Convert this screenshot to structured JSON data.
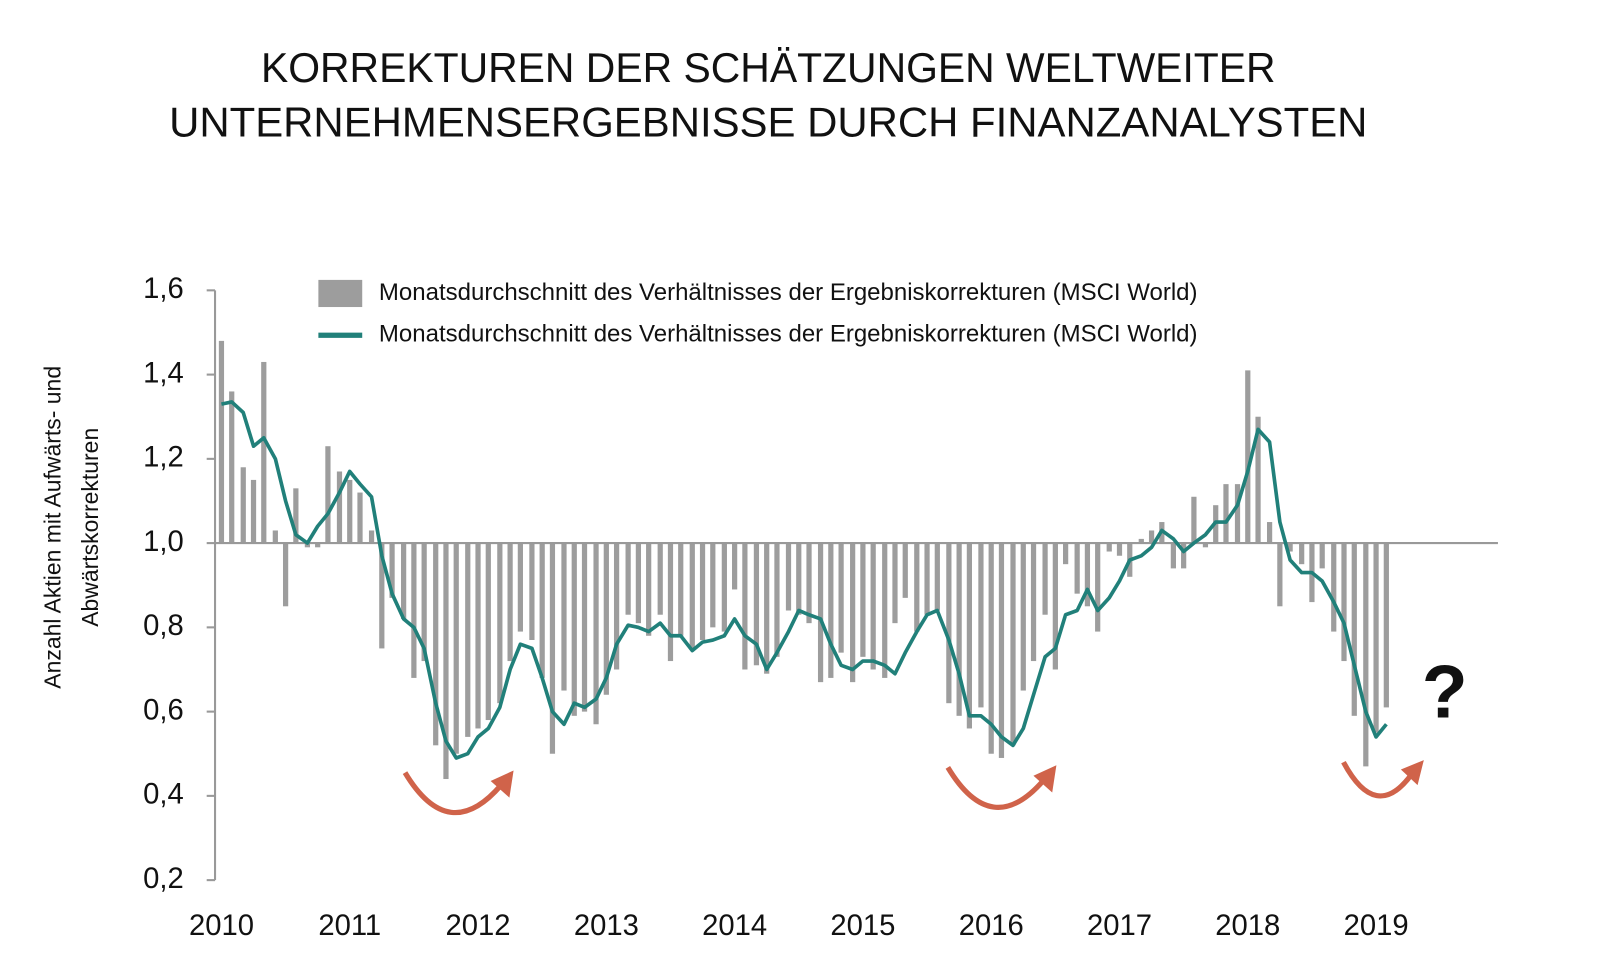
{
  "chart_data": {
    "type": "bar-line",
    "title": [
      "KORREKTUREN DER SCHÄTZUNGEN WELTWEITER",
      "UNTERNEHMENSERGEBNISSE DURCH FINANZANALYSTEN"
    ],
    "y_label": [
      "Anzahl Aktien mit Aufwärts- und",
      "Abwärtskorrekturen"
    ],
    "annotation": "?",
    "xlim": [
      2009.95,
      2019.95
    ],
    "xticks": [
      2010,
      2011,
      2012,
      2013,
      2014,
      2015,
      2016,
      2017,
      2018,
      2019
    ],
    "ylim": [
      0.2,
      1.6
    ],
    "yticks": [
      {
        "value": 0.2,
        "label": "0,2"
      },
      {
        "value": 0.4,
        "label": "0,4"
      },
      {
        "value": 0.6,
        "label": "0,6"
      },
      {
        "value": 0.8,
        "label": "0,8"
      },
      {
        "value": 1.0,
        "label": "1,0"
      },
      {
        "value": 1.2,
        "label": "1,2"
      },
      {
        "value": 1.4,
        "label": "1,4"
      },
      {
        "value": 1.6,
        "label": "1,6"
      }
    ],
    "baseline": 1.0,
    "x": [
      2010.0,
      2010.08,
      2010.17,
      2010.25,
      2010.33,
      2010.42,
      2010.5,
      2010.58,
      2010.67,
      2010.75,
      2010.83,
      2010.92,
      2011.0,
      2011.08,
      2011.17,
      2011.25,
      2011.33,
      2011.42,
      2011.5,
      2011.58,
      2011.67,
      2011.75,
      2011.83,
      2011.92,
      2012.0,
      2012.08,
      2012.17,
      2012.25,
      2012.33,
      2012.42,
      2012.5,
      2012.58,
      2012.67,
      2012.75,
      2012.83,
      2012.92,
      2013.0,
      2013.08,
      2013.17,
      2013.25,
      2013.33,
      2013.42,
      2013.5,
      2013.58,
      2013.67,
      2013.75,
      2013.83,
      2013.92,
      2014.0,
      2014.08,
      2014.17,
      2014.25,
      2014.33,
      2014.42,
      2014.5,
      2014.58,
      2014.67,
      2014.75,
      2014.83,
      2014.92,
      2015.0,
      2015.08,
      2015.17,
      2015.25,
      2015.33,
      2015.42,
      2015.5,
      2015.58,
      2015.67,
      2015.75,
      2015.83,
      2015.92,
      2016.0,
      2016.08,
      2016.17,
      2016.25,
      2016.33,
      2016.42,
      2016.5,
      2016.58,
      2016.67,
      2016.75,
      2016.83,
      2016.92,
      2017.0,
      2017.08,
      2017.17,
      2017.25,
      2017.33,
      2017.42,
      2017.5,
      2017.58,
      2017.67,
      2017.75,
      2017.83,
      2017.92,
      2018.0,
      2018.08,
      2018.17,
      2018.25,
      2018.33,
      2018.42,
      2018.5,
      2018.58,
      2018.67,
      2018.75,
      2018.83,
      2018.92,
      2019.0,
      2019.08
    ],
    "series": [
      {
        "name": "Monatsdurchschnitt des Verhältnisses der Ergebniskorrekturen (MSCI World)",
        "type": "bar",
        "color": "#9d9d9d",
        "values": [
          1.48,
          1.36,
          1.18,
          1.15,
          1.43,
          1.03,
          0.85,
          1.13,
          0.99,
          0.99,
          1.23,
          1.17,
          1.15,
          1.12,
          1.03,
          0.75,
          0.87,
          0.82,
          0.68,
          0.72,
          0.52,
          0.44,
          0.5,
          0.54,
          0.56,
          0.58,
          0.62,
          0.72,
          0.79,
          0.77,
          0.68,
          0.5,
          0.65,
          0.59,
          0.6,
          0.57,
          0.64,
          0.7,
          0.83,
          0.81,
          0.78,
          0.83,
          0.72,
          0.78,
          0.75,
          0.77,
          0.8,
          0.79,
          0.89,
          0.7,
          0.71,
          0.69,
          0.73,
          0.84,
          0.83,
          0.81,
          0.67,
          0.68,
          0.74,
          0.67,
          0.73,
          0.7,
          0.68,
          0.81,
          0.87,
          0.79,
          0.83,
          0.84,
          0.62,
          0.59,
          0.56,
          0.61,
          0.5,
          0.49,
          0.52,
          0.65,
          0.72,
          0.83,
          0.7,
          0.95,
          0.88,
          0.85,
          0.79,
          0.98,
          0.97,
          0.92,
          1.01,
          1.03,
          1.05,
          0.94,
          0.94,
          1.11,
          0.99,
          1.09,
          1.14,
          1.14,
          1.41,
          1.3,
          1.05,
          0.85,
          0.98,
          0.95,
          0.86,
          0.94,
          0.79,
          0.72,
          0.59,
          0.47,
          0.55,
          0.61
        ]
      },
      {
        "name": "Monatsdurchschnitt des Verhältnisses der Ergebniskorrekturen (MSCI World)",
        "type": "line",
        "color": "#21807a",
        "values": [
          1.33,
          1.335,
          1.31,
          1.23,
          1.25,
          1.2,
          1.1,
          1.02,
          1.0,
          1.04,
          1.07,
          1.12,
          1.17,
          1.14,
          1.11,
          0.97,
          0.88,
          0.82,
          0.8,
          0.75,
          0.62,
          0.53,
          0.49,
          0.5,
          0.54,
          0.56,
          0.61,
          0.7,
          0.76,
          0.75,
          0.68,
          0.6,
          0.57,
          0.62,
          0.61,
          0.63,
          0.68,
          0.76,
          0.805,
          0.8,
          0.79,
          0.81,
          0.78,
          0.78,
          0.745,
          0.765,
          0.77,
          0.78,
          0.82,
          0.78,
          0.76,
          0.7,
          0.74,
          0.79,
          0.84,
          0.83,
          0.82,
          0.76,
          0.71,
          0.7,
          0.72,
          0.72,
          0.71,
          0.69,
          0.74,
          0.79,
          0.83,
          0.84,
          0.77,
          0.69,
          0.59,
          0.59,
          0.57,
          0.54,
          0.52,
          0.56,
          0.64,
          0.73,
          0.75,
          0.83,
          0.84,
          0.89,
          0.84,
          0.87,
          0.91,
          0.96,
          0.97,
          0.99,
          1.03,
          1.01,
          0.98,
          1.0,
          1.02,
          1.05,
          1.05,
          1.09,
          1.17,
          1.27,
          1.24,
          1.05,
          0.96,
          0.93,
          0.93,
          0.91,
          0.86,
          0.81,
          0.71,
          0.6,
          0.54,
          0.57
        ]
      }
    ]
  }
}
